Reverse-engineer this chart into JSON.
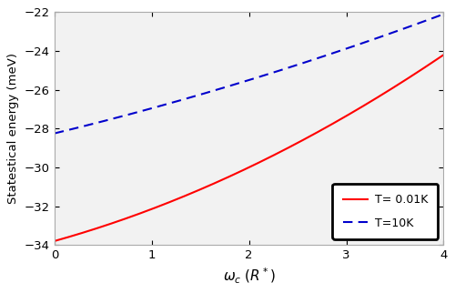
{
  "xlabel": "$\\omega_c$ ($R^*$)",
  "ylabel": "Statestical energy (meV)",
  "xlim": [
    0,
    4
  ],
  "ylim": [
    -34,
    -22
  ],
  "xticks": [
    0,
    1,
    2,
    3,
    4
  ],
  "yticks": [
    -34,
    -32,
    -30,
    -28,
    -26,
    -24,
    -22
  ],
  "red_a": 0.35,
  "red_b": 2.45,
  "red_c": -33.8,
  "blue_a": 0.07,
  "blue_b": 1.48,
  "blue_c": -28.25,
  "red_color": "#FF0000",
  "blue_color": "#0000CC",
  "legend_label_red": "T= 0.01K",
  "legend_label_blue": "T=10K",
  "figsize": [
    5.0,
    3.22
  ],
  "dpi": 100,
  "bg_color": "#F2F2F2",
  "spine_color": "#AAAAAA"
}
